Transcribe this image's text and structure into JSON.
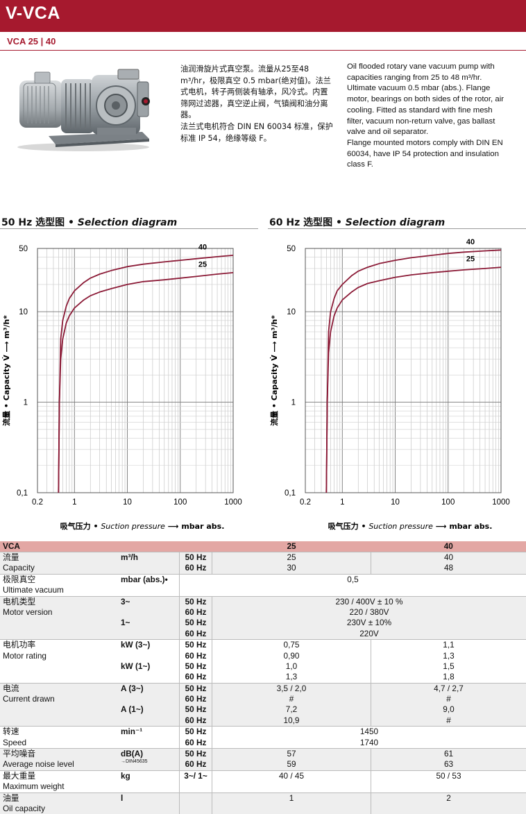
{
  "header": {
    "title": "V-VCA",
    "subtitle": "VCA 25 | 40"
  },
  "description": {
    "cn": [
      "油润滑旋片式真空泵。流量从25至48 m³/hr，极限真空 0.5 mbar(绝对值)。法兰式电机，转子两侧装有轴承，风冷式。内置筛网过滤器，真空逆止阀，气镇阀和油分离器。",
      "法兰式电机符合 DIN EN 60034 标准，保护标准 IP 54，绝缘等级 F。"
    ],
    "en": [
      "Oil flooded rotary vane vacuum pump with capacities ranging from 25 to 48 m³/hr. Ultimate vacuum 0.5 mbar (abs.). Flange motor, bearings on both sides of the rotor, air cooling. Fitted as standard with fine mesh filter, vacuum non-return valve, gas ballast valve and oil separator.",
      "Flange mounted motors comply with DIN EN 60034, have IP 54 protection and insulation class F."
    ]
  },
  "sections": [
    {
      "cn": "50 Hz 选型图 ",
      "en": "• Selection diagram"
    },
    {
      "cn": "60 Hz 选型图 ",
      "en": "• Selection diagram"
    }
  ],
  "chart_data": [
    {
      "type": "line",
      "title": "50 Hz 选型图 • Selection diagram",
      "xlabel_cn": "吸气压力 •",
      "xlabel_en": "Suction pressure",
      "xlabel_unit": "mbar abs.",
      "ylabel": "流量 • Capacity V̇ ⟶ m³/h*",
      "xscale": "log",
      "yscale": "log",
      "xlim": [
        0.2,
        1000
      ],
      "ylim": [
        0.1,
        50
      ],
      "xticks": [
        "0.2",
        "1",
        "10",
        "100",
        "1000"
      ],
      "yticks": [
        "0,1",
        "1",
        "10",
        "50"
      ],
      "series": [
        {
          "name": "40",
          "x": [
            0.5,
            0.52,
            0.55,
            0.6,
            0.7,
            0.8,
            1,
            1.5,
            2,
            3,
            5,
            10,
            20,
            50,
            100,
            200,
            500,
            1000
          ],
          "y": [
            0.1,
            1,
            5,
            8,
            11.5,
            14,
            17,
            21,
            23.5,
            26,
            28.5,
            31.5,
            33.5,
            35.5,
            37,
            38.5,
            40.5,
            42
          ]
        },
        {
          "name": "25",
          "x": [
            0.5,
            0.52,
            0.55,
            0.6,
            0.7,
            0.8,
            1,
            1.5,
            2,
            3,
            5,
            10,
            20,
            50,
            100,
            200,
            500,
            1000
          ],
          "y": [
            0.1,
            1,
            3,
            5,
            7.5,
            9,
            11,
            13.5,
            15,
            16.5,
            18,
            20,
            21.5,
            22.5,
            23.5,
            24.5,
            26,
            27
          ]
        }
      ]
    },
    {
      "type": "line",
      "title": "60 Hz 选型图 • Selection diagram",
      "xlabel_cn": "吸气压力 •",
      "xlabel_en": "Suction pressure",
      "xlabel_unit": "mbar abs.",
      "ylabel": "流量 • Capacity V̇ ⟶ m³/h*",
      "xscale": "log",
      "yscale": "log",
      "xlim": [
        0.2,
        1000
      ],
      "ylim": [
        0.1,
        50
      ],
      "xticks": [
        "0.2",
        "1",
        "10",
        "100",
        "1000"
      ],
      "yticks": [
        "0,1",
        "1",
        "10",
        "50"
      ],
      "series": [
        {
          "name": "40",
          "x": [
            0.5,
            0.52,
            0.55,
            0.6,
            0.7,
            0.8,
            1,
            1.5,
            2,
            3,
            5,
            10,
            20,
            50,
            100,
            200,
            500,
            1000
          ],
          "y": [
            0.1,
            1,
            6,
            10,
            14,
            17,
            20,
            25,
            28,
            31,
            34,
            37,
            39.5,
            42,
            44,
            45.5,
            47,
            48
          ]
        },
        {
          "name": "25",
          "x": [
            0.5,
            0.52,
            0.55,
            0.6,
            0.7,
            0.8,
            1,
            1.5,
            2,
            3,
            5,
            10,
            20,
            50,
            100,
            200,
            500,
            1000
          ],
          "y": [
            0.1,
            1,
            3.5,
            6,
            9,
            11,
            13.5,
            16.5,
            18.5,
            20.5,
            22,
            24,
            25.5,
            27,
            28,
            29,
            30,
            31
          ]
        }
      ]
    }
  ],
  "table": {
    "header": [
      "VCA",
      "25",
      "40"
    ],
    "rows": [
      {
        "label": [
          "流量",
          "Capacity"
        ],
        "unit": "m³/h",
        "hz": [
          "50 Hz",
          "60 Hz"
        ],
        "v25": [
          "25",
          "30"
        ],
        "v40": [
          "40",
          "48"
        ]
      },
      {
        "label": [
          "极限真空",
          "Ultimate vacuum"
        ],
        "unit": "mbar (abs.)•",
        "value": "0,5"
      },
      {
        "label": [
          "电机类型",
          "Motor version"
        ],
        "unit1": "3~",
        "unit2": "1~",
        "hz": [
          "50 Hz",
          "60 Hz",
          "50 Hz",
          "60 Hz"
        ],
        "values": [
          "230 / 400V ± 10 %",
          "220 / 380V",
          "230V ± 10%",
          "220V"
        ]
      },
      {
        "label": [
          "电机功率",
          "Motor rating"
        ],
        "unit1": "kW (3~)",
        "unit2": "kW (1~)",
        "hz": [
          "50 Hz",
          "60 Hz",
          "50 Hz",
          "60 Hz"
        ],
        "v25": [
          "0,75",
          "0,90",
          "1,0",
          "1,3"
        ],
        "v40": [
          "1,1",
          "1,3",
          "1,5",
          "1,8"
        ]
      },
      {
        "label": [
          "电流",
          "Current drawn"
        ],
        "unit1": "A (3~)",
        "unit2": "A (1~)",
        "hz": [
          "50 Hz",
          "60 Hz",
          "50 Hz",
          "60 Hz"
        ],
        "v25": [
          "3,5 / 2,0",
          "#",
          "7,2",
          "10,9"
        ],
        "v40": [
          "4,7 / 2,7",
          "#",
          "9,0",
          "#"
        ]
      },
      {
        "label": [
          "转速",
          "Speed"
        ],
        "unit": "min⁻¹",
        "hz": [
          "50 Hz",
          "60 Hz"
        ],
        "values": [
          "1450",
          "1740"
        ]
      },
      {
        "label": [
          "平均噪音",
          "Average noise level"
        ],
        "unit": "dB(A)",
        "unit_sub": "→DIN45635",
        "hz": [
          "50 Hz",
          "60 Hz"
        ],
        "v25": [
          "57",
          "59"
        ],
        "v40": [
          "61",
          "63"
        ]
      },
      {
        "label": [
          "最大重量",
          "Maximum weight"
        ],
        "unit": "kg",
        "hz": [
          "3~/ 1~"
        ],
        "v25": [
          "40 / 45"
        ],
        "v40": [
          "50 / 53"
        ]
      },
      {
        "label": [
          "油量",
          "Oil capacity"
        ],
        "unit": "l",
        "v25": [
          "1"
        ],
        "v40": [
          "2"
        ]
      }
    ]
  },
  "colors": {
    "brand": "#a6192e",
    "curve": "#8b1a36",
    "header_row": "#e3a7a4"
  }
}
